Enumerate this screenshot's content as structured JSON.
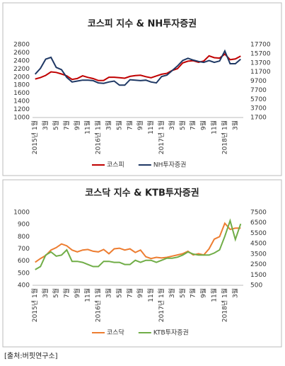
{
  "chart_data": [
    {
      "type": "line",
      "title": "코스피 지수 & NH투자증권",
      "categories": [
        "2015년 1월",
        null,
        "3월",
        null,
        "5월",
        null,
        "7월",
        null,
        "9월",
        null,
        "11월",
        null,
        "2016년 1월",
        null,
        "3월",
        null,
        "5월",
        null,
        "7월",
        null,
        "9월",
        null,
        "11월",
        null,
        "2017년 1월",
        null,
        "3월",
        null,
        "5월",
        null,
        "7월",
        null,
        "9월",
        null,
        "11월",
        null,
        "2018년 1월",
        null,
        "3월",
        null
      ],
      "series": [
        {
          "name": "코스피",
          "color": "#c00000",
          "values": [
            1950,
            1985,
            2040,
            2127,
            2114,
            2074,
            2030,
            1941,
            1963,
            2029,
            1991,
            1961,
            1912,
            1916,
            1995,
            1994,
            1983,
            1970,
            2016,
            2034,
            2043,
            2008,
            1983,
            2026,
            2067,
            2091,
            2160,
            2205,
            2347,
            2391,
            2402,
            2363,
            2394,
            2523,
            2476,
            2467,
            2566,
            2427,
            2445,
            2515
          ]
        },
        {
          "name": "NH투자증권",
          "color": "#1f3864",
          "axis": "y2",
          "values": [
            11200,
            12500,
            14500,
            14900,
            12700,
            12200,
            10500,
            9500,
            9700,
            9900,
            9900,
            9800,
            9300,
            9200,
            9500,
            9700,
            8800,
            8800,
            10000,
            9900,
            9800,
            9900,
            9500,
            9300,
            10700,
            11000,
            12000,
            13000,
            14200,
            14700,
            14300,
            14000,
            13800,
            14200,
            13800,
            14100,
            16300,
            13500,
            13500,
            14500
          ]
        }
      ],
      "ylim": [
        1000,
        2800
      ],
      "yticks": [
        1000,
        1200,
        1400,
        1600,
        1800,
        2000,
        2200,
        2400,
        2600,
        2800
      ],
      "y2lim": [
        1700,
        17700
      ],
      "y2ticks": [
        1700,
        3700,
        5700,
        7700,
        9700,
        11700,
        13700,
        15700,
        17700
      ],
      "grid": false,
      "legend": "bottom"
    },
    {
      "type": "line",
      "title": "코스닥 지수 & KTB투자증권",
      "categories": [
        "2015년 1월",
        null,
        "3월",
        null,
        "5월",
        null,
        "7월",
        null,
        "9월",
        null,
        "11월",
        null,
        "2016년 1월",
        null,
        "3월",
        null,
        "5월",
        null,
        "7월",
        null,
        "9월",
        null,
        "11월",
        null,
        "2017년 1월",
        null,
        "3월",
        null,
        "5월",
        null,
        "7월",
        null,
        "9월",
        null,
        "11월",
        null,
        "2018년 1월",
        null,
        "3월",
        null
      ],
      "series": [
        {
          "name": "코스닥",
          "color": "#ed7d31",
          "values": [
            590,
            620,
            645,
            690,
            710,
            740,
            725,
            690,
            675,
            690,
            695,
            680,
            675,
            695,
            660,
            700,
            705,
            690,
            700,
            670,
            690,
            635,
            620,
            630,
            625,
            630,
            640,
            650,
            660,
            680,
            650,
            660,
            650,
            700,
            780,
            800,
            910,
            860,
            870,
            870
          ]
        },
        {
          "name": "KTB투자증권",
          "color": "#70ad47",
          "axis": "y2",
          "values": [
            2000,
            2300,
            3400,
            3700,
            3300,
            3400,
            3900,
            2800,
            2800,
            2700,
            2500,
            2300,
            2300,
            2800,
            2800,
            2700,
            2700,
            2500,
            2500,
            2900,
            2700,
            2900,
            2900,
            2700,
            2900,
            3100,
            3100,
            3200,
            3400,
            3700,
            3500,
            3400,
            3400,
            3400,
            3600,
            3900,
            5200,
            6700,
            4900,
            6400
          ]
        }
      ],
      "ylim": [
        400,
        1000
      ],
      "yticks": [
        400,
        500,
        600,
        700,
        800,
        900,
        1000
      ],
      "y2lim": [
        500,
        7500
      ],
      "y2ticks": [
        500,
        1500,
        2500,
        3500,
        4500,
        5500,
        6500,
        7500
      ],
      "grid": false,
      "legend": "bottom"
    }
  ],
  "source": "[출처:버핏연구소]"
}
